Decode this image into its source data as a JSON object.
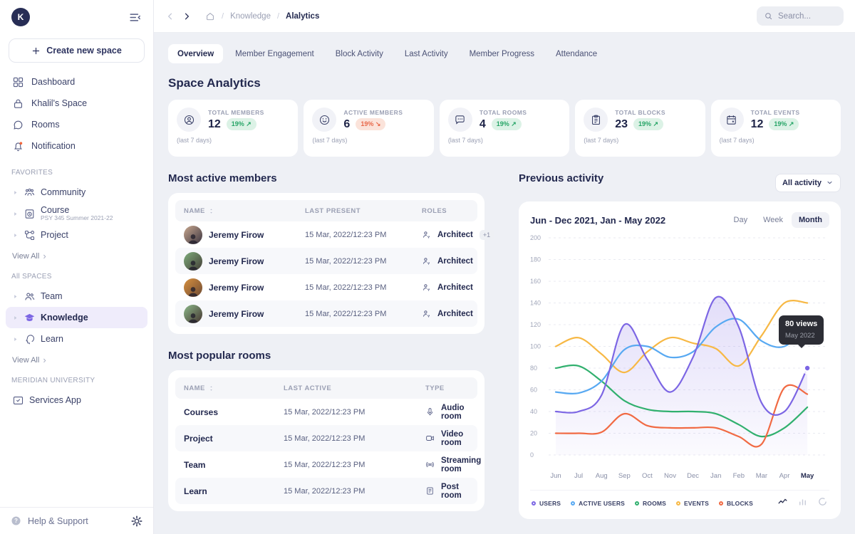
{
  "app": {
    "background": "#EEF0F5",
    "accent": "#7C66E4"
  },
  "sidebar": {
    "logo_letter": "K",
    "create_button_label": "Create new space",
    "nav": [
      {
        "label": "Dashboard",
        "icon": "grid"
      },
      {
        "label": "Khalil's Space",
        "icon": "lock"
      },
      {
        "label": "Rooms",
        "icon": "chat"
      },
      {
        "label": "Notification",
        "icon": "bell"
      }
    ],
    "sections": [
      {
        "title": "FAVORITES",
        "items": [
          {
            "label": "Community",
            "icon": "community",
            "caret": true
          },
          {
            "label": "Course",
            "sublabel": "PSY 345 Summer 2021-22",
            "icon": "course",
            "caret": true
          },
          {
            "label": "Project",
            "icon": "project",
            "caret": true
          }
        ],
        "view_all_label": "View All"
      },
      {
        "title": "All SPACES",
        "items": [
          {
            "label": "Team",
            "icon": "team",
            "caret": true
          },
          {
            "label": "Knowledge",
            "icon": "cap",
            "caret": true,
            "active": true,
            "icon_color": "#7C66E4"
          },
          {
            "label": "Learn",
            "icon": "learn",
            "caret": true
          }
        ],
        "view_all_label": "View All"
      },
      {
        "title": "MERIDIAN UNIVERSITY",
        "items": [
          {
            "label": "Services App",
            "icon": "services"
          }
        ]
      }
    ],
    "help_label": "Help & Support"
  },
  "header": {
    "breadcrumb": {
      "separator": "/",
      "items": [
        "Knowledge",
        "Alalytics"
      ],
      "current": "Alalytics"
    },
    "search_placeholder": "Search..."
  },
  "tabs": {
    "items": [
      "Overview",
      "Member Engagement",
      "Block Activity",
      "Last Activity",
      "Member Progress",
      "Attendance"
    ],
    "active": "Overview"
  },
  "page_title": "Space Analytics",
  "stats": [
    {
      "label": "TOTAL MEMBERS",
      "value": "12",
      "change": "19%",
      "arrow": "↗",
      "direction": "up",
      "note": "(last 7 days)",
      "icon": "person-circle"
    },
    {
      "label": "ACTIVE MEMBERS",
      "value": "6",
      "change": "19%",
      "arrow": "↘",
      "direction": "down",
      "note": "(last 7 days)",
      "icon": "smiley"
    },
    {
      "label": "TOTAL ROOMS",
      "value": "4",
      "change": "19%",
      "arrow": "↗",
      "direction": "up",
      "note": "(last 7 days)",
      "icon": "chat-dots"
    },
    {
      "label": "TOTAL BLOCKS",
      "value": "23",
      "change": "19%",
      "arrow": "↗",
      "direction": "up",
      "note": "(last 7 days)",
      "icon": "clipboard"
    },
    {
      "label": "TOTAL EVENTS",
      "value": "12",
      "change": "19%",
      "arrow": "↗",
      "direction": "up",
      "note": "(last 7 days)",
      "icon": "calendar"
    }
  ],
  "members_table": {
    "title": "Most active members",
    "headers": [
      "NAME",
      "LAST PRESENT",
      "ROLES"
    ],
    "rows": [
      {
        "name": "Jeremy Firow",
        "last_present": "15 Mar, 2022/12:23 PM",
        "role": "Architect",
        "extra_roles": "+1",
        "avatar_colors": [
          "#C9A88F",
          "#3A3440"
        ]
      },
      {
        "name": "Jeremy Firow",
        "last_present": "15 Mar, 2022/12:23 PM",
        "role": "Architect",
        "avatar_colors": [
          "#7FAE7C",
          "#433C36"
        ]
      },
      {
        "name": "Jeremy Firow",
        "last_present": "15 Mar, 2022/12:23 PM",
        "role": "Architect",
        "avatar_colors": [
          "#D9913F",
          "#6E4A33"
        ]
      },
      {
        "name": "Jeremy Firow",
        "last_present": "15 Mar, 2022/12:23 PM",
        "role": "Architect",
        "avatar_colors": [
          "#8CB98A",
          "#44332F"
        ]
      }
    ]
  },
  "rooms_table": {
    "title": "Most popular rooms",
    "headers": [
      "NAME",
      "LAST ACTIVE",
      "TYPE"
    ],
    "rows": [
      {
        "name": "Courses",
        "last_active": "15 Mar, 2022/12:23 PM",
        "type": "Audio room",
        "type_icon": "mic"
      },
      {
        "name": "Project",
        "last_active": "15 Mar, 2022/12:23 PM",
        "type": "Video room",
        "type_icon": "video"
      },
      {
        "name": "Team",
        "last_active": "15 Mar, 2022/12:23 PM",
        "type": "Streaming room",
        "type_icon": "broadcast"
      },
      {
        "name": "Learn",
        "last_active": "15 Mar, 2022/12:23 PM",
        "type": "Post room",
        "type_icon": "post"
      }
    ]
  },
  "activity": {
    "title": "Previous activity",
    "filter_label": "All activity",
    "periods": [
      "Day",
      "Week",
      "Month"
    ],
    "active_period": "Month",
    "tooltip": {
      "value": "80 views",
      "date": "May 2022"
    }
  },
  "chart_data": {
    "type": "line",
    "title": "Jun - Dec 2021, Jan - May 2022",
    "x": [
      "Jun",
      "Jul",
      "Aug",
      "Sep",
      "Oct",
      "Nov",
      "Dec",
      "Jan",
      "Feb",
      "Mar",
      "Apr",
      "May"
    ],
    "ylim": [
      0,
      200
    ],
    "ytick_step": 20,
    "grid": "horizontal-dashed",
    "legend_position": "bottom",
    "highlight_month": "May",
    "series": [
      {
        "name": "USERS",
        "color": "#7C66E4",
        "area_fill": true,
        "values": [
          40,
          40,
          55,
          120,
          88,
          58,
          90,
          145,
          118,
          48,
          40,
          80
        ]
      },
      {
        "name": "ACTIVE USERS",
        "color": "#58A9F2",
        "values": [
          58,
          57,
          68,
          97,
          100,
          90,
          95,
          118,
          125,
          105,
          100,
          120
        ]
      },
      {
        "name": "ROOMS",
        "color": "#31B06E",
        "values": [
          80,
          82,
          68,
          50,
          42,
          40,
          40,
          38,
          28,
          17,
          25,
          44
        ]
      },
      {
        "name": "EVENTS",
        "color": "#F7B844",
        "values": [
          100,
          108,
          93,
          76,
          95,
          108,
          103,
          98,
          82,
          110,
          140,
          140
        ]
      },
      {
        "name": "BLOCKS",
        "color": "#F16A43",
        "values": [
          20,
          20,
          21,
          38,
          27,
          25,
          25,
          25,
          17,
          10,
          62,
          56
        ]
      }
    ],
    "annotation": {
      "label": "80 views",
      "sublabel": "May 2022",
      "series": "USERS",
      "x": "May",
      "y": 80
    }
  }
}
